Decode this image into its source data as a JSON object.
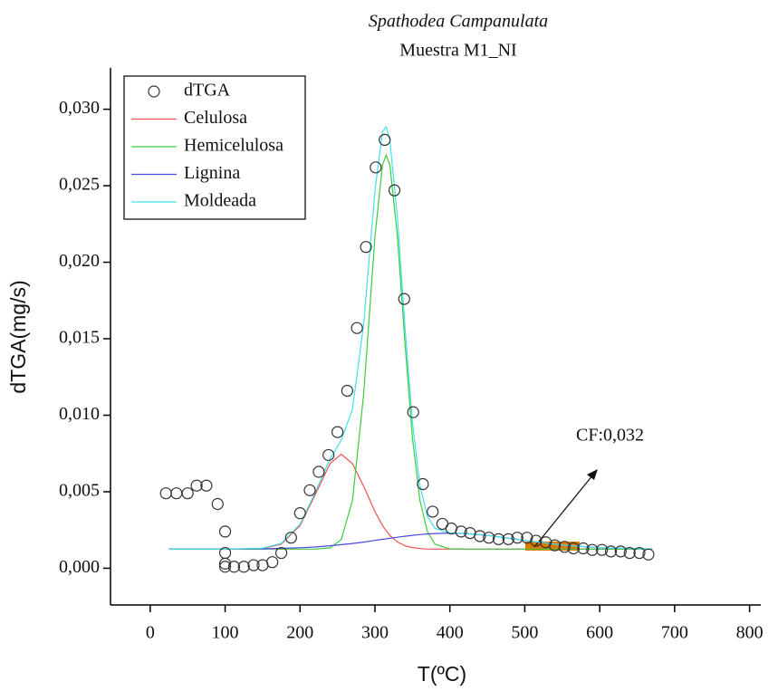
{
  "chart_data": {
    "type": "line",
    "title": "Spathodea Campanulata",
    "subtitle": "Muestra M1_NI",
    "x_label": "T(ºC)",
    "y_label": "dTGA(mg/s)",
    "annotation": "CF:0,032",
    "xlim": [
      -53,
      815
    ],
    "ylim": [
      -0.0024,
      0.0327
    ],
    "xticks": [
      0,
      100,
      200,
      300,
      400,
      500,
      600,
      700,
      800
    ],
    "yticks": [
      {
        "value": 0,
        "label": "0,000"
      },
      {
        "value": 0.005,
        "label": "0,005"
      },
      {
        "value": 0.01,
        "label": "0,010"
      },
      {
        "value": 0.015,
        "label": "0,015"
      },
      {
        "value": 0.02,
        "label": "0,020"
      },
      {
        "value": 0.025,
        "label": "0,025"
      },
      {
        "value": 0.03,
        "label": "0,030"
      }
    ],
    "legend": "upper-left",
    "series": [
      {
        "name": "dTGA",
        "mode": "markers",
        "color": "#333333",
        "x": [
          21,
          35,
          50,
          62,
          75,
          90,
          100,
          100,
          100,
          100,
          112,
          125,
          138,
          150,
          163,
          175,
          188,
          200,
          213,
          225,
          238,
          250,
          263,
          276,
          288,
          301,
          313,
          326,
          339,
          351,
          364,
          377,
          390,
          402,
          415,
          427,
          440,
          452,
          465,
          478,
          490,
          503,
          515,
          528,
          540,
          553,
          565,
          578,
          590,
          603,
          615,
          628,
          640,
          653,
          665
        ],
        "values": [
          0.0049,
          0.0049,
          0.0049,
          0.0054,
          0.0054,
          0.0042,
          0.0024,
          0.001,
          0.0003,
          0.0001,
          0.0001,
          0.0001,
          0.0002,
          0.0002,
          0.0004,
          0.001,
          0.002,
          0.0036,
          0.0051,
          0.0063,
          0.0074,
          0.0089,
          0.0116,
          0.0157,
          0.021,
          0.0262,
          0.028,
          0.0247,
          0.0176,
          0.0102,
          0.0055,
          0.0037,
          0.0029,
          0.0026,
          0.0024,
          0.0023,
          0.0021,
          0.002,
          0.0019,
          0.0019,
          0.002,
          0.002,
          0.0018,
          0.0017,
          0.0015,
          0.0014,
          0.0013,
          0.0013,
          0.0012,
          0.0012,
          0.0011,
          0.0011,
          0.001,
          0.001,
          0.0009
        ]
      },
      {
        "name": "Celulosa",
        "mode": "line",
        "color": "#f05050",
        "x": [
          25,
          100,
          150,
          175,
          200,
          220,
          240,
          255,
          270,
          285,
          300,
          310,
          315,
          320,
          330,
          340,
          350,
          360,
          370,
          380,
          400,
          420,
          450,
          500,
          550,
          600,
          670
        ],
        "values": [
          0.00125,
          0.00125,
          0.00129,
          0.00158,
          0.00279,
          0.00478,
          0.00684,
          0.00745,
          0.00684,
          0.00535,
          0.0037,
          0.00279,
          0.00244,
          0.00214,
          0.00172,
          0.00147,
          0.00135,
          0.00129,
          0.00126,
          0.00125,
          0.00125,
          0.00125,
          0.00125,
          0.00125,
          0.00125,
          0.00125,
          0.00125
        ]
      },
      {
        "name": "Hemicelulosa",
        "mode": "line",
        "color": "#3ccc3c",
        "x": [
          25,
          100,
          150,
          175,
          200,
          220,
          240,
          255,
          270,
          285,
          300,
          310,
          315,
          320,
          330,
          340,
          350,
          360,
          370,
          380,
          400,
          420,
          450,
          500,
          550,
          600,
          670
        ],
        "values": [
          0.00125,
          0.00125,
          0.00125,
          0.00125,
          0.00125,
          0.00125,
          0.00133,
          0.00188,
          0.00444,
          0.01142,
          0.02167,
          0.02635,
          0.027,
          0.02635,
          0.02167,
          0.01474,
          0.00851,
          0.00444,
          0.00238,
          0.00158,
          0.00126,
          0.00125,
          0.00125,
          0.00125,
          0.00125,
          0.00125,
          0.00125
        ]
      },
      {
        "name": "Lignina",
        "mode": "line",
        "color": "#4a4ae0",
        "x": [
          25,
          100,
          150,
          175,
          200,
          220,
          240,
          255,
          270,
          285,
          300,
          310,
          315,
          320,
          330,
          340,
          350,
          360,
          370,
          380,
          400,
          420,
          450,
          500,
          550,
          600,
          670
        ],
        "values": [
          0.00125,
          0.00125,
          0.00127,
          0.0013,
          0.00134,
          0.00139,
          0.00147,
          0.00154,
          0.00162,
          0.00171,
          0.00182,
          0.00189,
          0.00192,
          0.00196,
          0.00203,
          0.00209,
          0.00215,
          0.0022,
          0.00224,
          0.00227,
          0.0023,
          0.00227,
          0.00215,
          0.00182,
          0.00151,
          0.00134,
          0.00126
        ]
      },
      {
        "name": "Moldeada",
        "mode": "line",
        "color": "#40e0f0",
        "x": [
          25,
          100,
          150,
          175,
          200,
          220,
          240,
          255,
          270,
          285,
          300,
          310,
          315,
          320,
          330,
          340,
          350,
          360,
          370,
          380,
          400,
          420,
          450,
          500,
          550,
          600,
          670
        ],
        "values": [
          0.00125,
          0.00125,
          0.00131,
          0.00163,
          0.00288,
          0.00492,
          0.00714,
          0.00837,
          0.0104,
          0.01598,
          0.02469,
          0.02853,
          0.02886,
          0.02795,
          0.02292,
          0.0158,
          0.00951,
          0.00543,
          0.00338,
          0.0026,
          0.00231,
          0.00227,
          0.00215,
          0.00182,
          0.00151,
          0.00134,
          0.00126
        ]
      }
    ]
  }
}
